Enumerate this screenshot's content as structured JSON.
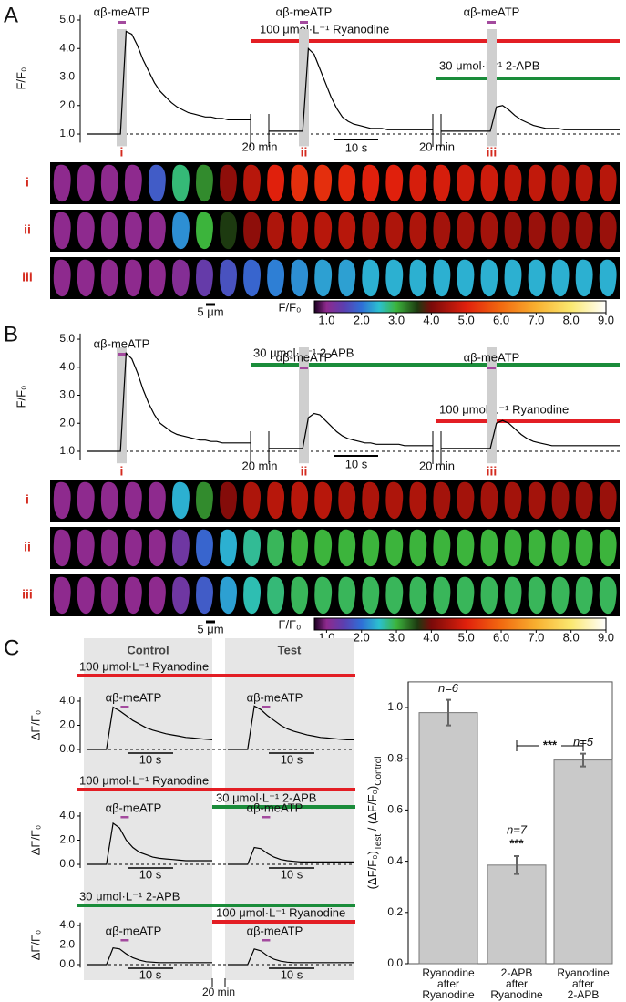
{
  "chart_data": [
    {
      "type": "line",
      "panel": "A",
      "ylabel": "F/F₀",
      "ylim": [
        0.7,
        5.2
      ],
      "yticks": [
        {
          "value": 1,
          "label": "1.0"
        },
        {
          "value": 2,
          "label": "2.0"
        },
        {
          "value": 3,
          "label": "3.0"
        },
        {
          "value": 4,
          "label": "4.0"
        },
        {
          "value": 5,
          "label": "5.0"
        }
      ],
      "baseline": 1,
      "stimulus": "αβ-meATP",
      "stimulus_color": "#a34a9e",
      "segments": [
        {
          "marker": "i",
          "values": [
            1.0,
            1.0,
            1.0,
            1.0,
            1.0,
            1.0,
            1.0,
            4.6,
            4.5,
            4.1,
            3.6,
            3.2,
            2.8,
            2.5,
            2.3,
            2.1,
            1.95,
            1.85,
            1.75,
            1.7,
            1.65,
            1.6,
            1.6,
            1.55,
            1.55,
            1.5,
            1.5,
            1.5,
            1.5,
            1.5
          ]
        },
        {
          "marker": "ii",
          "values": [
            1.1,
            1.1,
            1.1,
            1.1,
            1.1,
            1.1,
            1.1,
            4.0,
            3.8,
            3.3,
            2.8,
            2.3,
            1.9,
            1.6,
            1.45,
            1.35,
            1.3,
            1.25,
            1.2,
            1.2,
            1.2,
            1.15,
            1.15,
            1.15,
            1.15,
            1.15,
            1.15,
            1.15,
            1.15,
            1.15
          ]
        },
        {
          "marker": "iii",
          "values": [
            1.1,
            1.1,
            1.1,
            1.1,
            1.1,
            1.1,
            1.1,
            1.1,
            1.1,
            1.95,
            2.0,
            1.85,
            1.65,
            1.5,
            1.4,
            1.3,
            1.25,
            1.2,
            1.2,
            1.2,
            1.15,
            1.15,
            1.15,
            1.15,
            1.15,
            1.15,
            1.15,
            1.15,
            1.15,
            1.15
          ]
        }
      ],
      "gap_label": "20 min",
      "scalebar": "10 s",
      "treatments": [
        {
          "label": "100 μmol·L⁻¹ Ryanodine",
          "color": "#e31e24"
        },
        {
          "label": "30 μmol·L⁻¹ 2-APB",
          "color": "#1a8c3a"
        }
      ]
    },
    {
      "type": "image-strip",
      "rows": [
        {
          "label": "i",
          "values": [
            1,
            1,
            1,
            1,
            1.8,
            2.8,
            3.2,
            4.2,
            4.6,
            5,
            5.2,
            5.2,
            5.1,
            5,
            5,
            4.9,
            4.9,
            4.8,
            4.8,
            4.7,
            4.7,
            4.6,
            4.6,
            4.6
          ]
        },
        {
          "label": "ii",
          "values": [
            1,
            1,
            1,
            1,
            1,
            2.2,
            3,
            3.6,
            4.2,
            4.5,
            4.6,
            4.6,
            4.6,
            4.5,
            4.5,
            4.5,
            4.4,
            4.4,
            4.4,
            4.3,
            4.3,
            4.3,
            4.3,
            4.3
          ]
        },
        {
          "label": "iii",
          "values": [
            1,
            1,
            1,
            1,
            1,
            1.1,
            1.4,
            1.7,
            1.9,
            2.1,
            2.2,
            2.3,
            2.3,
            2.4,
            2.4,
            2.4,
            2.4,
            2.4,
            2.4,
            2.4,
            2.4,
            2.4,
            2.4,
            2.4
          ]
        }
      ],
      "scalebar": "5 μm",
      "colorbar": {
        "label": "F/F₀",
        "lim": [
          0.65,
          9.0
        ],
        "ticks": [
          {
            "value": 1,
            "label": "1.0"
          },
          {
            "value": 2,
            "label": "2.0"
          },
          {
            "value": 3,
            "label": "3.0"
          },
          {
            "value": 4,
            "label": "4.0"
          },
          {
            "value": 5,
            "label": "5.0"
          },
          {
            "value": 6,
            "label": "6.0"
          },
          {
            "value": 7,
            "label": "7.0"
          },
          {
            "value": 8,
            "label": "8.0"
          },
          {
            "value": 9,
            "label": "9.0"
          }
        ],
        "colormap": [
          {
            "value": 0.65,
            "color": "#1a0020"
          },
          {
            "value": 1.0,
            "color": "#8e2a8e"
          },
          {
            "value": 1.5,
            "color": "#5b3fb0"
          },
          {
            "value": 2.0,
            "color": "#2f6fd6"
          },
          {
            "value": 2.5,
            "color": "#2bc0d0"
          },
          {
            "value": 3.0,
            "color": "#3cb43c"
          },
          {
            "value": 3.6,
            "color": "#1d3a10"
          },
          {
            "value": 4.0,
            "color": "#7a0a0a"
          },
          {
            "value": 5.0,
            "color": "#e0200c"
          },
          {
            "value": 6.0,
            "color": "#f26a10"
          },
          {
            "value": 7.0,
            "color": "#f8b030"
          },
          {
            "value": 8.0,
            "color": "#fbe870"
          },
          {
            "value": 9.0,
            "color": "#ffffff"
          }
        ]
      }
    },
    {
      "type": "line",
      "panel": "B",
      "ylabel": "F/F₀",
      "ylim": [
        0.7,
        5.2
      ],
      "yticks": [
        {
          "value": 1,
          "label": "1.0"
        },
        {
          "value": 2,
          "label": "2.0"
        },
        {
          "value": 3,
          "label": "3.0"
        },
        {
          "value": 4,
          "label": "4.0"
        },
        {
          "value": 5,
          "label": "5.0"
        }
      ],
      "baseline": 1,
      "stimulus": "αβ-meATP",
      "stimulus_color": "#a34a9e",
      "segments": [
        {
          "marker": "i",
          "values": [
            1.0,
            1.0,
            1.0,
            1.0,
            1.0,
            1.0,
            1.0,
            4.5,
            4.3,
            3.8,
            3.2,
            2.7,
            2.3,
            2.0,
            1.85,
            1.7,
            1.6,
            1.55,
            1.5,
            1.45,
            1.4,
            1.4,
            1.35,
            1.35,
            1.3,
            1.3,
            1.3,
            1.3,
            1.3,
            1.3
          ]
        },
        {
          "marker": "ii",
          "values": [
            1.1,
            1.1,
            1.1,
            1.1,
            1.1,
            1.1,
            1.1,
            2.2,
            2.35,
            2.3,
            2.1,
            1.9,
            1.7,
            1.55,
            1.45,
            1.4,
            1.35,
            1.3,
            1.3,
            1.25,
            1.25,
            1.25,
            1.25,
            1.25,
            1.2,
            1.2,
            1.2,
            1.2,
            1.2,
            1.2
          ]
        },
        {
          "marker": "iii",
          "values": [
            1.1,
            1.1,
            1.1,
            1.1,
            1.1,
            1.1,
            1.1,
            1.1,
            1.1,
            2.0,
            2.1,
            2.0,
            1.8,
            1.6,
            1.45,
            1.35,
            1.3,
            1.25,
            1.2,
            1.2,
            1.2,
            1.2,
            1.2,
            1.2,
            1.2,
            1.2,
            1.2,
            1.2,
            1.2,
            1.2
          ]
        }
      ],
      "gap_label": "20 min",
      "scalebar": "10 s",
      "treatments": [
        {
          "label": "30 μmol·L⁻¹ 2-APB",
          "color": "#1a8c3a"
        },
        {
          "label": "100 μmol·L⁻¹ Ryanodine",
          "color": "#e31e24"
        }
      ]
    },
    {
      "type": "image-strip",
      "rows": [
        {
          "label": "i",
          "values": [
            1,
            1,
            1,
            1,
            1,
            2.4,
            3.2,
            4.1,
            4.5,
            4.6,
            4.6,
            4.6,
            4.5,
            4.5,
            4.5,
            4.5,
            4.4,
            4.4,
            4.4,
            4.4,
            4.4,
            4.3,
            4.3,
            4.3
          ]
        },
        {
          "label": "ii",
          "values": [
            1,
            1,
            1,
            1,
            1,
            1.3,
            1.9,
            2.4,
            2.7,
            2.9,
            3,
            3,
            3,
            3,
            3,
            3,
            3,
            3,
            3,
            3,
            3,
            3,
            3,
            3
          ]
        },
        {
          "label": "iii",
          "values": [
            1,
            1,
            1,
            1,
            1,
            1.3,
            1.8,
            2.3,
            2.6,
            2.8,
            2.9,
            2.9,
            2.9,
            2.9,
            2.9,
            2.9,
            2.9,
            2.9,
            2.9,
            2.9,
            2.9,
            2.9,
            2.9,
            2.9
          ]
        }
      ],
      "scalebar": "5 μm",
      "colorbar": {
        "label": "F/F₀",
        "lim": [
          0.65,
          9.0
        ],
        "ticks": [
          {
            "value": 1,
            "label": "1.0"
          },
          {
            "value": 2,
            "label": "2.0"
          },
          {
            "value": 3,
            "label": "3.0"
          },
          {
            "value": 4,
            "label": "4.0"
          },
          {
            "value": 5,
            "label": "5.0"
          },
          {
            "value": 6,
            "label": "6.0"
          },
          {
            "value": 7,
            "label": "7.0"
          },
          {
            "value": 8,
            "label": "8.0"
          },
          {
            "value": 9,
            "label": "9.0"
          }
        ],
        "colormap": [
          {
            "value": 0.65,
            "color": "#1a0020"
          },
          {
            "value": 1.0,
            "color": "#8e2a8e"
          },
          {
            "value": 1.5,
            "color": "#5b3fb0"
          },
          {
            "value": 2.0,
            "color": "#2f6fd6"
          },
          {
            "value": 2.5,
            "color": "#2bc0d0"
          },
          {
            "value": 3.0,
            "color": "#3cb43c"
          },
          {
            "value": 3.6,
            "color": "#1d3a10"
          },
          {
            "value": 4.0,
            "color": "#7a0a0a"
          },
          {
            "value": 5.0,
            "color": "#e0200c"
          },
          {
            "value": 6.0,
            "color": "#f26a10"
          },
          {
            "value": 7.0,
            "color": "#f8b030"
          },
          {
            "value": 8.0,
            "color": "#fbe870"
          },
          {
            "value": 9.0,
            "color": "#ffffff"
          }
        ]
      }
    },
    {
      "type": "line-grid",
      "panel": "C",
      "columns": [
        "Control",
        "Test"
      ],
      "ylabel": "ΔF/F₀",
      "ylim": [
        -0.3,
        4.3
      ],
      "yticks": [
        {
          "value": 0,
          "label": "0.0"
        },
        {
          "value": 2,
          "label": "2.0"
        },
        {
          "value": 4,
          "label": "4.0"
        }
      ],
      "baseline": 0,
      "stimulus": "αβ-meATP",
      "stimulus_color": "#a34a9e",
      "scalebar": "10 s",
      "gap_label": "20 min",
      "rows": [
        {
          "treatments": [
            {
              "label": "100 μmol·L⁻¹ Ryanodine",
              "color": "#e31e24"
            }
          ],
          "series": [
            {
              "values": [
                0,
                0,
                0,
                0,
                3.5,
                3.2,
                2.8,
                2.4,
                2.1,
                1.8,
                1.6,
                1.45,
                1.3,
                1.2,
                1.1,
                1.0,
                0.95,
                0.9,
                0.85,
                0.8
              ]
            },
            {
              "values": [
                0,
                0,
                0,
                0,
                3.6,
                3.3,
                2.8,
                2.4,
                2.0,
                1.7,
                1.5,
                1.35,
                1.2,
                1.1,
                1.0,
                0.95,
                0.9,
                0.85,
                0.8,
                0.8
              ]
            }
          ]
        },
        {
          "treatments": [
            {
              "label": "100 μmol·L⁻¹ Ryanodine",
              "color": "#e31e24"
            },
            {
              "label": "30 μmol·L⁻¹ 2-APB",
              "color": "#1a8c3a"
            }
          ],
          "series": [
            {
              "values": [
                0,
                0,
                0,
                0,
                3.4,
                3.0,
                2.0,
                1.4,
                1.0,
                0.8,
                0.6,
                0.5,
                0.45,
                0.4,
                0.35,
                0.3,
                0.3,
                0.3,
                0.3,
                0.3
              ]
            },
            {
              "values": [
                0,
                0,
                0,
                0,
                1.4,
                1.3,
                0.9,
                0.6,
                0.4,
                0.3,
                0.25,
                0.2,
                0.2,
                0.2,
                0.2,
                0.2,
                0.2,
                0.2,
                0.2,
                0.2
              ]
            }
          ]
        },
        {
          "treatments": [
            {
              "label": "30 μmol·L⁻¹ 2-APB",
              "color": "#1a8c3a"
            },
            {
              "label": "100 μmol·L⁻¹ Ryanodine",
              "color": "#e31e24"
            }
          ],
          "series": [
            {
              "values": [
                0,
                0,
                0,
                0,
                1.7,
                1.6,
                1.1,
                0.7,
                0.45,
                0.3,
                0.25,
                0.2,
                0.2,
                0.2,
                0.2,
                0.2,
                0.2,
                0.2,
                0.2,
                0.2
              ]
            },
            {
              "values": [
                0,
                0,
                0,
                0,
                1.6,
                1.4,
                0.9,
                0.55,
                0.35,
                0.25,
                0.2,
                0.2,
                0.2,
                0.2,
                0.2,
                0.2,
                0.2,
                0.2,
                0.2,
                0.2
              ]
            }
          ]
        }
      ]
    },
    {
      "type": "bar",
      "ylabel": [
        "(ΔF/F₀)",
        "Test",
        " / (ΔF/F₀)",
        "Control"
      ],
      "categories": [
        [
          "Ryanodine",
          "after",
          "Ryanodine"
        ],
        [
          "2-APB",
          "after",
          "Ryanodine"
        ],
        [
          "Ryanodine",
          "after",
          "2-APB"
        ]
      ],
      "values": [
        0.98,
        0.385,
        0.795
      ],
      "errors": [
        0.05,
        0.035,
        0.025
      ],
      "color": "#c9c9c9",
      "n_labels": [
        "n=6",
        "n=7",
        "n=5"
      ],
      "stars": [
        null,
        "***",
        null
      ],
      "comparison_label": "***",
      "ylim": [
        0,
        1.1
      ],
      "yticks": [
        {
          "value": 0,
          "label": "0.0"
        },
        {
          "value": 0.2,
          "label": "0.2"
        },
        {
          "value": 0.4,
          "label": "0.4"
        },
        {
          "value": 0.6,
          "label": "0.6"
        },
        {
          "value": 0.8,
          "label": "0.8"
        },
        {
          "value": 1,
          "label": "1.0"
        }
      ]
    }
  ]
}
